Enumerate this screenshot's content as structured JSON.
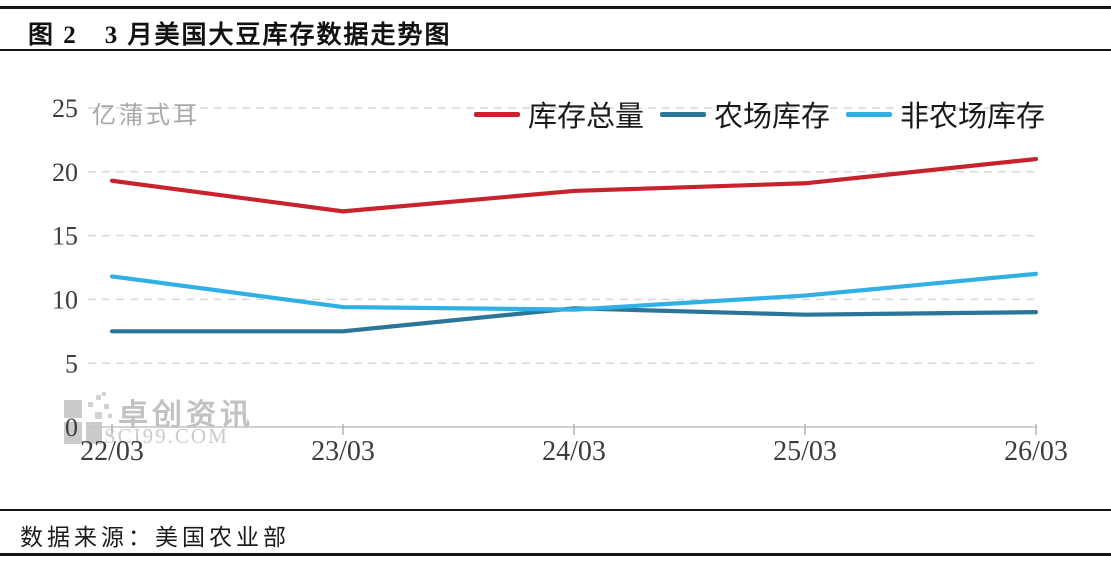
{
  "figure": {
    "title": "图 2　3 月美国大豆库存数据走势图",
    "source_label": "数据来源：美国农业部"
  },
  "watermark": {
    "name": "卓创资讯",
    "site": "SCI99.COM"
  },
  "chart_data": {
    "type": "line",
    "title": "3 月美国大豆库存数据走势图",
    "unit_label": "亿蒲式耳",
    "categories": [
      "22/03",
      "23/03",
      "24/03",
      "25/03",
      "26/03"
    ],
    "series": [
      {
        "name": "库存总量",
        "color": "#c8232c",
        "values": [
          19.3,
          16.9,
          18.5,
          19.1,
          21.0
        ]
      },
      {
        "name": "农场库存",
        "color": "#2b7599",
        "values": [
          7.5,
          7.5,
          9.3,
          8.8,
          9.0
        ]
      },
      {
        "name": "非农场库存",
        "color": "#31b0e5",
        "values": [
          11.8,
          9.4,
          9.2,
          10.3,
          12.0
        ]
      }
    ],
    "ylim": [
      0,
      25
    ],
    "ytick_step": 5,
    "yticks": [
      0,
      5,
      10,
      15,
      20,
      25
    ],
    "grid": "horizontal-dashed",
    "grid_color": "#d8d8d8",
    "axis_color": "#c4c4c4",
    "legend_position": "top-right"
  }
}
